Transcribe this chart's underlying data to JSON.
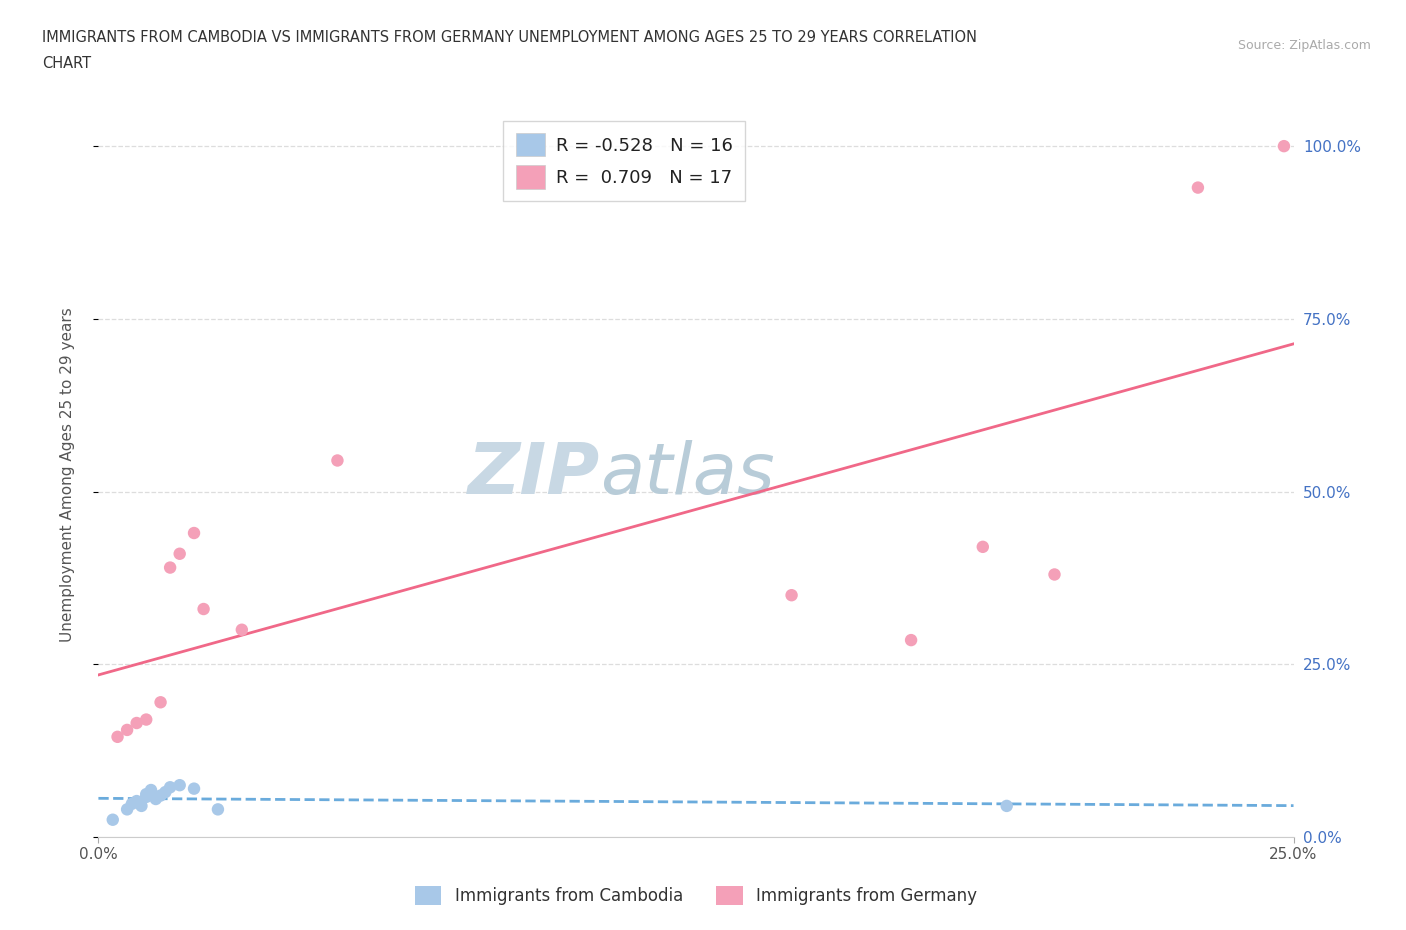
{
  "title_line1": "IMMIGRANTS FROM CAMBODIA VS IMMIGRANTS FROM GERMANY UNEMPLOYMENT AMONG AGES 25 TO 29 YEARS CORRELATION",
  "title_line2": "CHART",
  "source_text": "Source: ZipAtlas.com",
  "ylabel": "Unemployment Among Ages 25 to 29 years",
  "r_cambodia": -0.528,
  "n_cambodia": 16,
  "r_germany": 0.709,
  "n_germany": 17,
  "xlim": [
    0.0,
    0.25
  ],
  "ylim": [
    0.0,
    1.05
  ],
  "color_cambodia": "#a8c8e8",
  "color_germany": "#f4a0b8",
  "trendline_cambodia_color": "#6aabdc",
  "trendline_germany_color": "#f06888",
  "watermark_color": "#c8dcea",
  "background_color": "#ffffff",
  "grid_color": "#e0e0e0",
  "ytick_vals": [
    0.0,
    0.25,
    0.5,
    0.75,
    1.0
  ],
  "ytick_right_labels": [
    "0.0%",
    "25.0%",
    "50.0%",
    "75.0%",
    "100.0%"
  ],
  "xtick_vals": [
    0.0,
    0.25
  ],
  "xtick_labels": [
    "0.0%",
    "25.0%"
  ],
  "scatter_cambodia_x": [
    0.003,
    0.006,
    0.007,
    0.008,
    0.009,
    0.01,
    0.01,
    0.011,
    0.012,
    0.013,
    0.014,
    0.015,
    0.017,
    0.02,
    0.025,
    0.19
  ],
  "scatter_cambodia_y": [
    0.025,
    0.04,
    0.048,
    0.052,
    0.045,
    0.058,
    0.062,
    0.068,
    0.055,
    0.06,
    0.065,
    0.072,
    0.075,
    0.07,
    0.04,
    0.045
  ],
  "scatter_germany_x": [
    0.004,
    0.006,
    0.008,
    0.01,
    0.013,
    0.015,
    0.017,
    0.02,
    0.022,
    0.03,
    0.05,
    0.145,
    0.17,
    0.185,
    0.2,
    0.23,
    0.248
  ],
  "scatter_germany_y": [
    0.145,
    0.155,
    0.165,
    0.17,
    0.195,
    0.39,
    0.41,
    0.44,
    0.33,
    0.3,
    0.545,
    0.35,
    0.285,
    0.42,
    0.38,
    0.94,
    1.0
  ],
  "legend_cambodia_label": "Immigrants from Cambodia",
  "legend_germany_label": "Immigrants from Germany"
}
